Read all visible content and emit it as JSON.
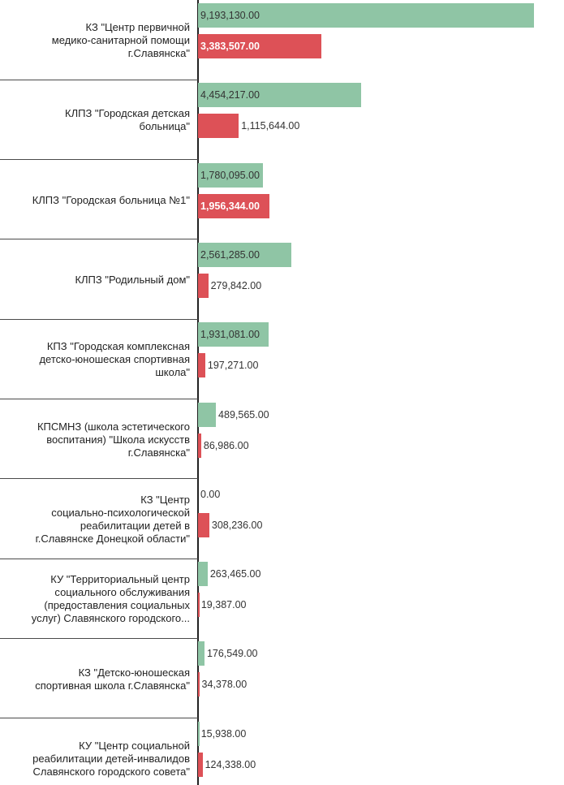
{
  "chart_data": {
    "type": "bar",
    "orientation": "horizontal",
    "categories": [
      "КЗ \"Центр первичной медико-санитарной помощи г.Славянска\"",
      "КЛПЗ \"Городская детская больница\"",
      "КЛПЗ \"Городская больница №1\"",
      "КЛПЗ \"Родильный дом\"",
      "КПЗ \"Городская комплексная детско-юношеская спортивная школа\"",
      "КПСМНЗ (школа эстетического воспитания) \"Школа искусств г.Славянска\"",
      "КЗ \"Центр социально-психологической реабилитации детей в г.Славянске Донецкой области\"",
      "КУ \"Территориальный центр социального обслуживания (предоставления социальных услуг) Славянского городского...",
      "КЗ \"Детско-юношеская спортивная школа г.Славянска\"",
      "КУ \"Центр социальной реабилитации детей-инвалидов Славянского городского совета\""
    ],
    "category_lines": [
      [
        "КЗ \"Центр первичной",
        "медико-санитарной помощи",
        "г.Славянска\""
      ],
      [
        "КЛПЗ \"Городская детская",
        "больница\""
      ],
      [
        "КЛПЗ \"Городская больница №1\""
      ],
      [
        "КЛПЗ \"Родильный дом\""
      ],
      [
        "КПЗ \"Городская комплексная",
        "детско-юношеская спортивная",
        "школа\""
      ],
      [
        "КПСМНЗ (школа эстетического",
        "воспитания) \"Школа искусств",
        "г.Славянска\""
      ],
      [
        "КЗ \"Центр",
        "социально-психологической",
        "реабилитации детей в",
        "г.Славянске Донецкой области\""
      ],
      [
        "КУ \"Территориальный центр",
        "социального обслуживания",
        "(предоставления социальных",
        "услуг) Славянского городского..."
      ],
      [
        "КЗ \"Детско-юношеская",
        "спортивная школа г.Славянска\""
      ],
      [
        "КУ \"Центр социальной",
        "реабилитации детей-инвалидов",
        "Славянского городского совета\""
      ]
    ],
    "series": [
      {
        "color": "#8fc5a5",
        "values": [
          9193130,
          4454217,
          1780095,
          2561285,
          1931081,
          489565,
          0,
          263465,
          176549,
          15938
        ],
        "labels": [
          "9,193,130.00",
          "4,454,217.00",
          "1,780,095.00",
          "2,561,285.00",
          "1,931,081.00",
          "489,565.00",
          "0.00",
          "263,465.00",
          "176,549.00",
          "15,938.00"
        ]
      },
      {
        "color": "#dd5157",
        "values": [
          3383507,
          1115644,
          1956344,
          279842,
          197271,
          86986,
          308236,
          19387,
          34378,
          124338
        ],
        "labels": [
          "3,383,507.00",
          "1,115,644.00",
          "1,956,344.00",
          "279,842.00",
          "197,271.00",
          "86,986.00",
          "308,236.00",
          "19,387.00",
          "34,378.00",
          "124,338.00"
        ]
      }
    ],
    "xlim": [
      0,
      9193130
    ],
    "title": "",
    "xlabel": "",
    "ylabel": "",
    "grid": false,
    "legend": "none"
  }
}
